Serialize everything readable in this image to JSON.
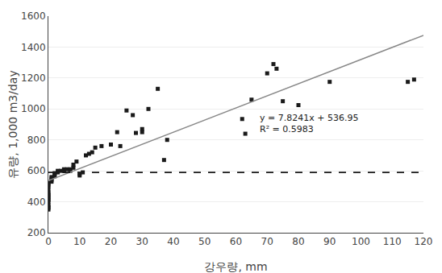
{
  "chart_data": {
    "type": "scatter",
    "xlabel": "강우량, mm",
    "ylabel": "유량, 1,000 m3/day",
    "xlim": [
      0,
      120
    ],
    "ylim": [
      200,
      1600
    ],
    "xticks": [
      0,
      10,
      20,
      30,
      40,
      50,
      60,
      70,
      80,
      90,
      100,
      110,
      120
    ],
    "yticks": [
      200,
      400,
      600,
      800,
      1000,
      1200,
      1400,
      1600
    ],
    "grid": "y",
    "annotations": [
      "y = 7.8241x + 536.95",
      "R² = 0.5983"
    ],
    "series": [
      {
        "type": "scatter",
        "marker": "square",
        "color": "#1a1a1a",
        "x": [
          0,
          0,
          0,
          0,
          0,
          0,
          0,
          0,
          0,
          0,
          0,
          0,
          0,
          0,
          0,
          1,
          1,
          1,
          1,
          2,
          2,
          2,
          3,
          3,
          4,
          5,
          5,
          6,
          7,
          7,
          8,
          8,
          9,
          10,
          10,
          11,
          12,
          13,
          14,
          15,
          17,
          20,
          22,
          23,
          25,
          27,
          28,
          30,
          30,
          32,
          35,
          37,
          38,
          62,
          63,
          65,
          70,
          72,
          73,
          75,
          80,
          90,
          115,
          117
        ],
        "values": [
          350,
          360,
          370,
          380,
          400,
          410,
          420,
          430,
          440,
          450,
          460,
          480,
          500,
          510,
          520,
          530,
          540,
          550,
          560,
          565,
          575,
          585,
          590,
          600,
          600,
          600,
          610,
          610,
          600,
          610,
          620,
          640,
          660,
          570,
          580,
          590,
          700,
          710,
          720,
          750,
          760,
          770,
          850,
          760,
          990,
          960,
          845,
          850,
          870,
          1000,
          1130,
          670,
          800,
          935,
          840,
          1060,
          1230,
          1290,
          1260,
          1050,
          1025,
          1175,
          1175,
          1190
        ]
      },
      {
        "type": "line",
        "color": "#888888",
        "x": [
          0,
          120
        ],
        "values": [
          536.95,
          1475.842
        ]
      },
      {
        "type": "hline",
        "color": "#1a1a1a",
        "line_style": "dashed",
        "values": [
          590
        ]
      }
    ]
  }
}
